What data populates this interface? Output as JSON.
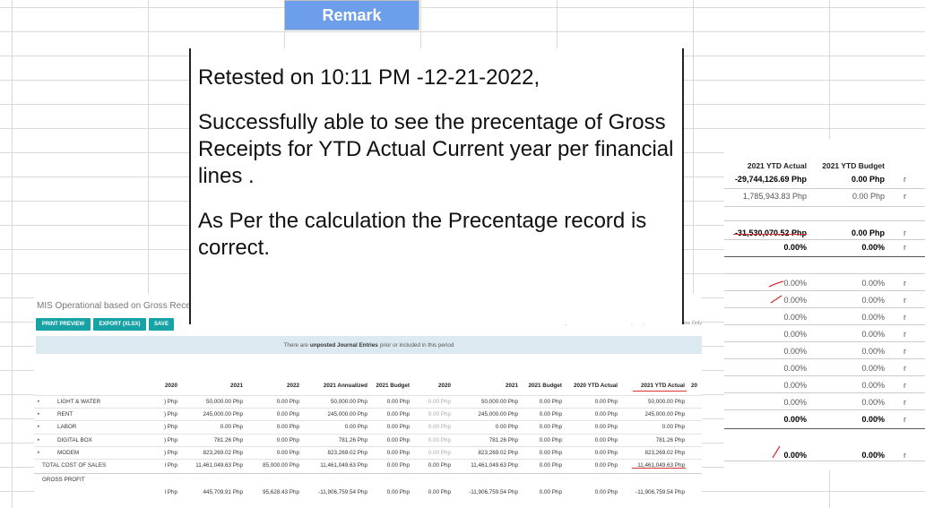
{
  "sheet": {
    "remark_header": "Remark"
  },
  "note": {
    "line1": "Retested on 10:11 PM -12-21-2022,",
    "line2": "Successfully able to see the precentage of Gross Receipts for YTD Actual Current year per financial lines .",
    "line3": "As Per the calculation the Precentage record is correct."
  },
  "right_report": {
    "headers": {
      "ytd_actual": "2021 YTD Actual",
      "ytd_budget": "2021 YTD Budget"
    },
    "rows": [
      {
        "actual": "-29,744,126.69 Php",
        "budget": "0.00 Php",
        "bold": true
      },
      {
        "actual": "1,785,943.83 Php",
        "budget": "0.00 Php"
      },
      {
        "actual": "-31,530,070.52 Php",
        "budget": "0.00 Php",
        "bold": true
      },
      {
        "actual": "0.00%",
        "budget": "0.00%",
        "bold": true
      },
      {
        "actual": "0.00%",
        "budget": "0.00%"
      },
      {
        "actual": "0.00%",
        "budget": "0.00%"
      },
      {
        "actual": "0.00%",
        "budget": "0.00%"
      },
      {
        "actual": "0.00%",
        "budget": "0.00%"
      },
      {
        "actual": "0.00%",
        "budget": "0.00%"
      },
      {
        "actual": "0.00%",
        "budget": "0.00%"
      },
      {
        "actual": "0.00%",
        "budget": "0.00%"
      },
      {
        "actual": "0.00%",
        "budget": "0.00%"
      },
      {
        "actual": "0.00%",
        "budget": "0.00%",
        "bold": true
      },
      {
        "actual": "0.00%",
        "budget": "0.00%",
        "bold": true
      }
    ],
    "edge_char": "r"
  },
  "report": {
    "title": "MIS Operational based on Gross Receip",
    "buttons": {
      "print": "PRINT PREVIEW",
      "export": "EXPORT (XLSX)",
      "save": "SAVE"
    },
    "toolbar_right": "Comparison  Date    Journals All    Analytic    Options  Posted Entries Only",
    "banner_pre": "There are",
    "banner_bold": "unposted Journal Entries",
    "banner_post": "prior or included in this period",
    "columns": [
      "2020",
      "2021",
      "2022",
      "2021 Annualized",
      "2021 Budget",
      "2020",
      "2021",
      "2021 Budget",
      "2020 YTD Actual",
      "2021 YTD Actual",
      "20"
    ],
    "rows": [
      {
        "label": "LIGHT & WATER",
        "vals": [
          ") Php",
          "50,000.00 Php",
          "0.00 Php",
          "50,000.00 Php",
          "0.00 Php",
          "0.00 Php",
          "50,000.00 Php",
          "0.00 Php",
          "0.00 Php",
          "50,000.00 Php"
        ]
      },
      {
        "label": "RENT",
        "vals": [
          ") Php",
          "245,000.00 Php",
          "0.00 Php",
          "245,000.00 Php",
          "0.00 Php",
          "0.00 Php",
          "245,000.00 Php",
          "0.00 Php",
          "0.00 Php",
          "245,000.00 Php"
        ]
      },
      {
        "label": "LABOR",
        "vals": [
          ") Php",
          "0.00 Php",
          "0.00 Php",
          "0.00 Php",
          "0.00 Php",
          "0.00 Php",
          "0.00 Php",
          "0.00 Php",
          "0.00 Php",
          "0.00 Php"
        ]
      },
      {
        "label": "DIGITAL BOX",
        "vals": [
          ") Php",
          "781.26 Php",
          "0.00 Php",
          "781.26 Php",
          "0.00 Php",
          "0.00 Php",
          "781.26 Php",
          "0.00 Php",
          "0.00 Php",
          "781.26 Php"
        ]
      },
      {
        "label": "MODEM",
        "vals": [
          ") Php",
          "823,269.02 Php",
          "0.00 Php",
          "823,269.02 Php",
          "0.00 Php",
          "0.00 Php",
          "823,269.02 Php",
          "0.00 Php",
          "0.00 Php",
          "823,269.02 Php"
        ]
      }
    ],
    "total": {
      "label": "TOTAL COST OF SALES",
      "vals": [
        "l Php",
        "11,461,049.63 Php",
        "85,000.00 Php",
        "11,461,049.63 Php",
        "0.00 Php",
        "0.00 Php",
        "11,461,049.63 Php",
        "0.00 Php",
        "0.00 Php",
        "11,461,049.63 Php"
      ]
    },
    "gross": {
      "label": "GROSS PROFIT",
      "vals": [
        "l Php",
        "445,709.91 Php",
        "95,628.43 Php",
        "-11,906,759.54 Php",
        "0.00 Php",
        "0.00 Php",
        "-11,906,759.54 Php",
        "0.00 Php",
        "0.00 Php",
        "-11,906,759.54 Php"
      ]
    }
  }
}
